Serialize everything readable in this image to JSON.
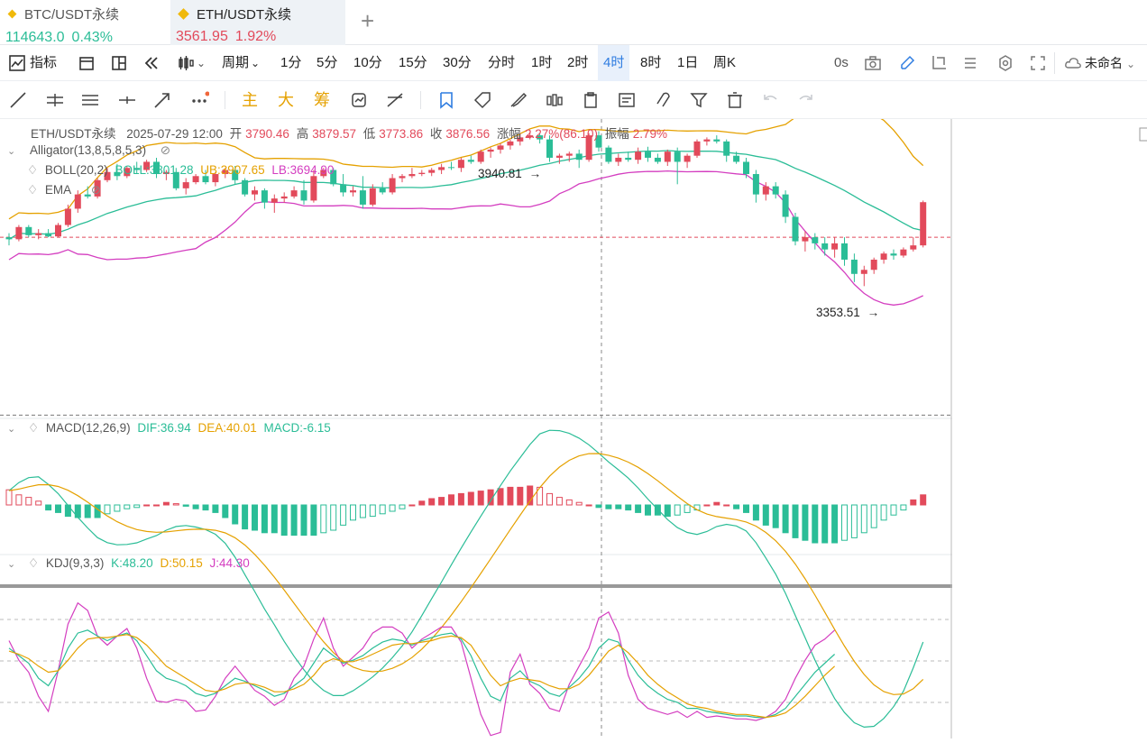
{
  "tabs": [
    {
      "symbol": "BTC/USDT永续",
      "price": "114643.0",
      "change": "0.43%",
      "active": false
    },
    {
      "symbol": "ETH/USDT永续",
      "price": "3561.95",
      "change": "1.92%",
      "active": true
    }
  ],
  "toolbar": {
    "indicator_label": "指标",
    "period_label": "周期",
    "intervals": [
      "1分",
      "5分",
      "10分",
      "15分",
      "30分",
      "分时",
      "1时",
      "2时",
      "4时",
      "8时",
      "1日",
      "周K"
    ],
    "selected_interval": "4时",
    "countdown": "0s",
    "layout_name": "未命名"
  },
  "drawing_tools": {
    "labels": [
      "主",
      "大",
      "筹"
    ]
  },
  "ohlc": {
    "symbol": "ETH/USDT永续",
    "datetime": "2025-07-29 12:00",
    "open_label": "开",
    "open": "3790.46",
    "high_label": "高",
    "high": "3879.57",
    "low_label": "低",
    "low": "3773.86",
    "close_label": "收",
    "close": "3876.56",
    "chg_label": "涨幅",
    "chg": "2.27%(86.10)",
    "amp_label": "振幅",
    "amp": "2.79%"
  },
  "indicators": {
    "alligator": "Alligator(13,8,5,8,5,3)",
    "boll_name": "BOLL(20,2)",
    "boll": "BOLL:3801.28",
    "ub": "UB:3907.65",
    "lb": "LB:3694.90",
    "ema": "EMA",
    "macd_name": "MACD(12,26,9)",
    "dif": "DIF:36.94",
    "dea": "DEA:40.01",
    "macd": "MACD:-6.15",
    "kdj_name": "KDJ(9,3,3)",
    "k": "K:48.20",
    "d": "D:50.15",
    "j": "J:44.30"
  },
  "annotations": {
    "high_marker": "3940.81",
    "low_marker": "3353.51"
  },
  "colors": {
    "up": "#e24a5b",
    "down": "#2bbd97",
    "boll_ub": "#e5a100",
    "boll_mid": "#2bbd97",
    "boll_lb": "#d43ec0",
    "accent": "#2f7de1"
  },
  "chart_data": {
    "type": "candlestick",
    "ohlc": [
      [
        3790,
        3800,
        3770,
        3785
      ],
      [
        3785,
        3820,
        3780,
        3815
      ],
      [
        3815,
        3820,
        3790,
        3795
      ],
      [
        3795,
        3810,
        3785,
        3800
      ],
      [
        3800,
        3810,
        3790,
        3792
      ],
      [
        3792,
        3825,
        3790,
        3820
      ],
      [
        3820,
        3870,
        3815,
        3860
      ],
      [
        3860,
        3905,
        3850,
        3895
      ],
      [
        3895,
        3915,
        3885,
        3890
      ],
      [
        3890,
        3935,
        3885,
        3930
      ],
      [
        3930,
        3960,
        3925,
        3950
      ],
      [
        3950,
        3970,
        3930,
        3940
      ],
      [
        3940,
        3965,
        3935,
        3960
      ],
      [
        3960,
        3975,
        3945,
        3955
      ],
      [
        3955,
        3980,
        3950,
        3975
      ],
      [
        3975,
        3985,
        3935,
        3945
      ],
      [
        3945,
        3955,
        3930,
        3950
      ],
      [
        3950,
        3960,
        3905,
        3910
      ],
      [
        3910,
        3935,
        3895,
        3925
      ],
      [
        3925,
        3945,
        3920,
        3940
      ],
      [
        3940,
        3955,
        3920,
        3925
      ],
      [
        3925,
        3950,
        3915,
        3945
      ],
      [
        3945,
        3960,
        3935,
        3955
      ],
      [
        3955,
        3965,
        3920,
        3930
      ],
      [
        3930,
        3935,
        3890,
        3895
      ],
      [
        3895,
        3915,
        3880,
        3905
      ],
      [
        3905,
        3910,
        3860,
        3875
      ],
      [
        3875,
        3895,
        3850,
        3885
      ],
      [
        3885,
        3900,
        3875,
        3890
      ],
      [
        3890,
        3915,
        3885,
        3905
      ],
      [
        3905,
        3930,
        3870,
        3880
      ],
      [
        3880,
        3955,
        3875,
        3940
      ],
      [
        3940,
        3960,
        3935,
        3955
      ],
      [
        3955,
        3960,
        3915,
        3920
      ],
      [
        3920,
        3945,
        3890,
        3900
      ],
      [
        3900,
        3915,
        3890,
        3905
      ],
      [
        3905,
        3940,
        3860,
        3870
      ],
      [
        3870,
        3920,
        3865,
        3910
      ],
      [
        3910,
        3925,
        3895,
        3900
      ],
      [
        3900,
        3945,
        3895,
        3935
      ],
      [
        3935,
        3945,
        3925,
        3940
      ],
      [
        3940,
        3960,
        3935,
        3945
      ],
      [
        3945,
        3955,
        3940,
        3948
      ],
      [
        3948,
        3960,
        3940,
        3955
      ],
      [
        3955,
        3970,
        3945,
        3962
      ],
      [
        3962,
        3975,
        3955,
        3960
      ],
      [
        3960,
        3985,
        3950,
        3980
      ],
      [
        3980,
        3990,
        3970,
        3975
      ],
      [
        3975,
        4005,
        3970,
        4000
      ],
      [
        4000,
        4010,
        3985,
        4005
      ],
      [
        4005,
        4020,
        3995,
        4015
      ],
      [
        4015,
        4030,
        4005,
        4025
      ],
      [
        4025,
        4045,
        4015,
        4035
      ],
      [
        4035,
        4048,
        4030,
        4040
      ],
      [
        4040,
        4045,
        4020,
        4030
      ],
      [
        4030,
        4040,
        3975,
        3985
      ],
      [
        3985,
        3995,
        3970,
        3990
      ],
      [
        3990,
        4000,
        3975,
        3995
      ],
      [
        3995,
        4005,
        3960,
        3980
      ],
      [
        3980,
        4045,
        3975,
        4040
      ],
      [
        4040,
        4050,
        4000,
        4010
      ],
      [
        4010,
        4015,
        3970,
        3975
      ],
      [
        3975,
        3995,
        3965,
        3985
      ],
      [
        3985,
        4000,
        3975,
        3980
      ],
      [
        3980,
        4010,
        3970,
        4000
      ],
      [
        4000,
        4012,
        3975,
        3985
      ],
      [
        3985,
        3995,
        3970,
        3975
      ],
      [
        3975,
        4005,
        3965,
        4000
      ],
      [
        4000,
        4010,
        3920,
        3975
      ],
      [
        3975,
        3995,
        3960,
        3990
      ],
      [
        3990,
        4030,
        3985,
        4025
      ],
      [
        4025,
        4035,
        4015,
        4030
      ],
      [
        4030,
        4040,
        4020,
        4025
      ],
      [
        4025,
        4030,
        3975,
        3990
      ],
      [
        3990,
        4000,
        3970,
        3975
      ],
      [
        3975,
        3985,
        3935,
        3945
      ],
      [
        3945,
        3955,
        3875,
        3895
      ],
      [
        3895,
        3925,
        3880,
        3915
      ],
      [
        3915,
        3925,
        3885,
        3895
      ],
      [
        3895,
        3905,
        3825,
        3840
      ],
      [
        3840,
        3850,
        3770,
        3780
      ],
      [
        3780,
        3805,
        3755,
        3790
      ],
      [
        3790,
        3800,
        3760,
        3775
      ],
      [
        3775,
        3790,
        3745,
        3760
      ],
      [
        3760,
        3790,
        3740,
        3775
      ],
      [
        3775,
        3790,
        3720,
        3735
      ],
      [
        3735,
        3750,
        3680,
        3700
      ],
      [
        3700,
        3720,
        3670,
        3710
      ],
      [
        3710,
        3740,
        3700,
        3735
      ],
      [
        3735,
        3755,
        3725,
        3750
      ],
      [
        3750,
        3760,
        3735,
        3745
      ],
      [
        3745,
        3765,
        3740,
        3760
      ],
      [
        3760,
        3790,
        3755,
        3770
      ],
      [
        3770,
        3880,
        3765,
        3876
      ]
    ],
    "y_range": [
      3350,
      4080
    ],
    "price_line": 3790,
    "marker_high": 3940.81,
    "marker_low": 3353.51,
    "macd_hist": [
      12,
      8,
      6,
      3,
      -4,
      -6,
      -9,
      -10,
      -10,
      -10,
      -7,
      -5,
      -3,
      -2,
      0,
      0,
      2,
      1,
      -1,
      -3,
      -4,
      -6,
      -10,
      -15,
      -19,
      -20,
      -22,
      -22,
      -24,
      -24,
      -24,
      -24,
      -22,
      -20,
      -16,
      -12,
      -10,
      -9,
      -7,
      -5,
      -3,
      0,
      3,
      5,
      6,
      8,
      9,
      10,
      11,
      12,
      13,
      14,
      14,
      15,
      14,
      9,
      6,
      4,
      2,
      0,
      -2,
      -3,
      -3,
      -4,
      -6,
      -8,
      -8,
      -9,
      -8,
      -6,
      -4,
      0,
      2,
      0,
      -3,
      -6,
      -12,
      -16,
      -18,
      -22,
      -26,
      -28,
      -30,
      -30,
      -30,
      -28,
      -26,
      -22,
      -18,
      -12,
      -8,
      -4,
      4,
      8
    ],
    "kdj_k": [
      60,
      55,
      50,
      40,
      35,
      45,
      60,
      70,
      72,
      68,
      65,
      68,
      70,
      65,
      55,
      45,
      40,
      38,
      35,
      30,
      28,
      30,
      35,
      40,
      38,
      35,
      32,
      28,
      30,
      35,
      40,
      50,
      60,
      55,
      50,
      52,
      55,
      60,
      64,
      66,
      65,
      62,
      65,
      67,
      69,
      70,
      66,
      55,
      40,
      28,
      25,
      40,
      45,
      38,
      35,
      30,
      28,
      34,
      40,
      48,
      60,
      66,
      64,
      52,
      42,
      35,
      30,
      26,
      24,
      20,
      20,
      18,
      17,
      16,
      15,
      15,
      14,
      14,
      16,
      20,
      28,
      36,
      44,
      50,
      56
    ],
    "kdj_d": [
      58,
      56,
      53,
      48,
      44,
      45,
      52,
      60,
      66,
      67,
      67,
      68,
      69,
      67,
      62,
      55,
      48,
      44,
      40,
      36,
      32,
      31,
      33,
      36,
      37,
      36,
      34,
      31,
      31,
      33,
      36,
      42,
      50,
      53,
      51,
      51,
      53,
      56,
      59,
      62,
      63,
      63,
      64,
      65,
      67,
      68,
      67,
      62,
      52,
      42,
      35,
      38,
      40,
      39,
      38,
      35,
      33,
      33,
      36,
      42,
      50,
      58,
      62,
      57,
      50,
      42,
      36,
      31,
      27,
      23,
      21,
      20,
      18,
      17,
      16,
      16,
      15,
      14,
      15,
      17,
      22,
      28,
      35,
      42,
      48
    ],
    "kdj_j": [
      65,
      52,
      44,
      28,
      18,
      45,
      76,
      90,
      85,
      68,
      62,
      68,
      73,
      60,
      40,
      25,
      24,
      26,
      25,
      18,
      19,
      28,
      40,
      48,
      40,
      32,
      28,
      22,
      26,
      40,
      48,
      66,
      80,
      60,
      48,
      54,
      60,
      70,
      74,
      74,
      70,
      60,
      66,
      70,
      74,
      74,
      64,
      40,
      16,
      2,
      4,
      44,
      56,
      36,
      30,
      20,
      18,
      36,
      48,
      60,
      80,
      84,
      70,
      42,
      26,
      20,
      18,
      16,
      18,
      14,
      18,
      14,
      15,
      14,
      13,
      13,
      12,
      14,
      18,
      26,
      40,
      52,
      62,
      66,
      72
    ]
  }
}
